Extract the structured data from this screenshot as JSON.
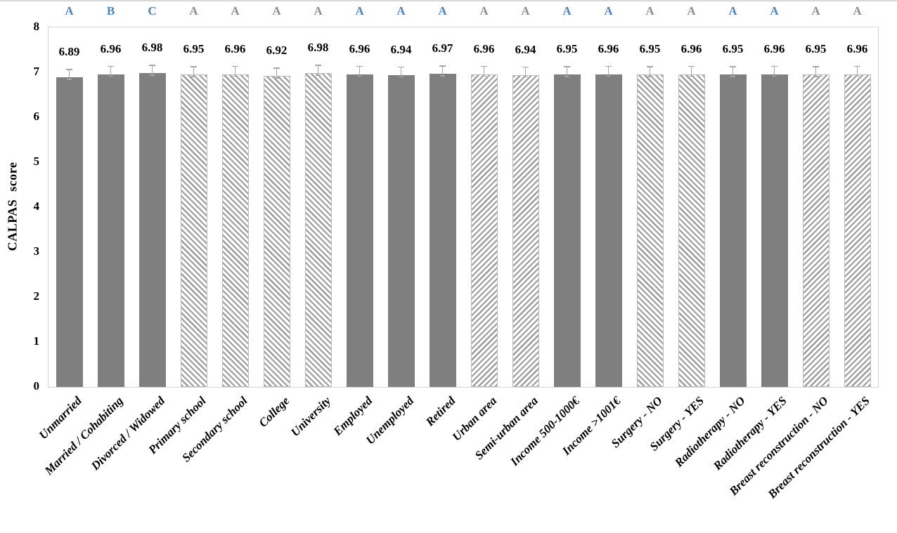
{
  "figure": {
    "background": "#ffffff"
  },
  "chart_data": {
    "type": "bar",
    "title": "",
    "xlabel": "",
    "ylabel": "CALPAS score",
    "ylim": [
      0,
      8
    ],
    "yticks": [
      "0",
      "1",
      "2",
      "3",
      "4",
      "5",
      "6",
      "7",
      "8"
    ],
    "grid": false,
    "legend": false,
    "error_bars_shown": true,
    "significance_letter_colors": {
      "blue": "#4f81bd",
      "gray": "#8c8c8c"
    },
    "bar_colors": {
      "solid_fill": "#7f7f7f",
      "hatch_stripe": "#9c9c9c",
      "hatch_background": "#ffffff"
    },
    "bars": [
      {
        "category": "Unmarried",
        "value": "6.89",
        "letter": "A",
        "letter_color": "blue",
        "fill": "solid"
      },
      {
        "category": "Married / Cohabiting",
        "value": "6.96",
        "letter": "B",
        "letter_color": "blue",
        "fill": "solid"
      },
      {
        "category": "Divorced / Widowed",
        "value": "6.98",
        "letter": "C",
        "letter_color": "blue",
        "fill": "solid"
      },
      {
        "category": "Primary school",
        "value": "6.95",
        "letter": "A",
        "letter_color": "gray",
        "fill": "diagonal-down"
      },
      {
        "category": "Secondary school",
        "value": "6.96",
        "letter": "A",
        "letter_color": "gray",
        "fill": "diagonal-down"
      },
      {
        "category": "College",
        "value": "6.92",
        "letter": "A",
        "letter_color": "gray",
        "fill": "diagonal-down"
      },
      {
        "category": "University",
        "value": "6.98",
        "letter": "A",
        "letter_color": "gray",
        "fill": "diagonal-down"
      },
      {
        "category": "Employed",
        "value": "6.96",
        "letter": "A",
        "letter_color": "blue",
        "fill": "solid"
      },
      {
        "category": "Unemployed",
        "value": "6.94",
        "letter": "A",
        "letter_color": "blue",
        "fill": "solid"
      },
      {
        "category": "Retired",
        "value": "6.97",
        "letter": "A",
        "letter_color": "blue",
        "fill": "solid"
      },
      {
        "category": "Urban area",
        "value": "6.96",
        "letter": "A",
        "letter_color": "gray",
        "fill": "diagonal-up"
      },
      {
        "category": "Semi-urban area",
        "value": "6.94",
        "letter": "A",
        "letter_color": "gray",
        "fill": "diagonal-up"
      },
      {
        "category": "Income 500-1000€",
        "value": "6.95",
        "letter": "A",
        "letter_color": "blue",
        "fill": "solid"
      },
      {
        "category": "Income >1001€",
        "value": "6.96",
        "letter": "A",
        "letter_color": "blue",
        "fill": "solid"
      },
      {
        "category": "Surgery - NO",
        "value": "6.95",
        "letter": "A",
        "letter_color": "gray",
        "fill": "diagonal-down"
      },
      {
        "category": "Surgery - YES",
        "value": "6.96",
        "letter": "A",
        "letter_color": "gray",
        "fill": "diagonal-down"
      },
      {
        "category": "Radiotherapy - NO",
        "value": "6.95",
        "letter": "A",
        "letter_color": "blue",
        "fill": "solid"
      },
      {
        "category": "Radiotherapy - YES",
        "value": "6.96",
        "letter": "A",
        "letter_color": "blue",
        "fill": "solid"
      },
      {
        "category": "Breast reconstruction - NO",
        "value": "6.95",
        "letter": "A",
        "letter_color": "gray",
        "fill": "diagonal-up"
      },
      {
        "category": "Breast reconstruction - YES",
        "value": "6.96",
        "letter": "A",
        "letter_color": "gray",
        "fill": "diagonal-up"
      }
    ]
  }
}
